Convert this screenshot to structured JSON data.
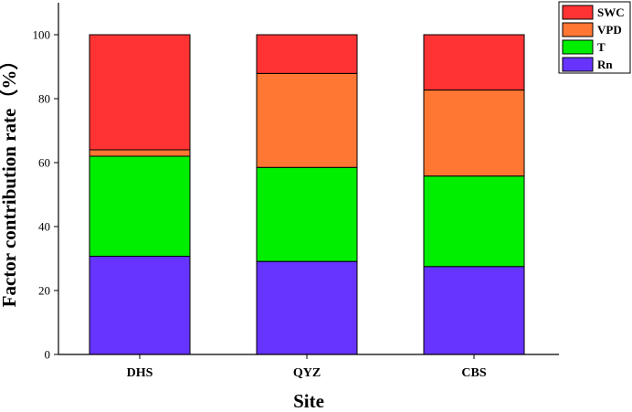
{
  "chart_data": {
    "type": "bar",
    "stacked": true,
    "xlabel": "Site",
    "ylabel": "Factor contribution rate（%）",
    "categories": [
      "DHS",
      "QYZ",
      "CBS"
    ],
    "ylim": [
      0,
      110
    ],
    "yticks": [
      "0",
      "20",
      "40",
      "60",
      "80",
      "100"
    ],
    "yticks_values": [
      0,
      20,
      40,
      60,
      80,
      100
    ],
    "legend_position": "top-right",
    "series": [
      {
        "name": "Rn",
        "color": "#6633ff",
        "values": [
          30.7,
          29.1,
          27.5
        ]
      },
      {
        "name": "T",
        "color": "#00ee00",
        "values": [
          31.3,
          29.4,
          28.3
        ]
      },
      {
        "name": "VPD",
        "color": "#ff7733",
        "values": [
          2.0,
          29.4,
          26.9
        ]
      },
      {
        "name": "SWC",
        "color": "#ff3333",
        "values": [
          36.0,
          12.1,
          17.3
        ]
      }
    ],
    "legend_order": [
      "SWC",
      "VPD",
      "T",
      "Rn"
    ]
  }
}
